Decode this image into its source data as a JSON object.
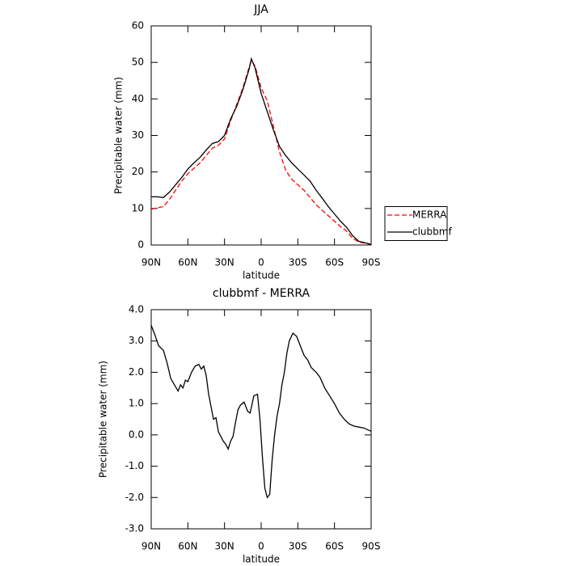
{
  "chart_data": [
    {
      "type": "line",
      "title": "JJA",
      "xlabel": "latitude",
      "ylabel": "Precipitable water (mm)",
      "x": [
        90,
        85,
        80,
        75,
        70,
        65,
        60,
        55,
        50,
        45,
        40,
        35,
        30,
        25,
        20,
        15,
        10,
        8,
        5,
        0,
        -5,
        -10,
        -15,
        -20,
        -25,
        -30,
        -35,
        -40,
        -45,
        -50,
        -55,
        -60,
        -65,
        -70,
        -75,
        -80,
        -85,
        -90
      ],
      "xlim": [
        90,
        -90
      ],
      "xticks": [
        {
          "value": 90,
          "label": "90N"
        },
        {
          "value": 60,
          "label": "60N"
        },
        {
          "value": 30,
          "label": "30N"
        },
        0,
        {
          "value": -30,
          "label": "30S"
        },
        {
          "value": -60,
          "label": "60S"
        },
        {
          "value": -90,
          "label": "90S"
        }
      ],
      "ylim": [
        0,
        60
      ],
      "yticks": [
        0,
        10,
        20,
        30,
        40,
        50,
        60
      ],
      "legend": "right",
      "series": [
        {
          "name": "MERRA",
          "color": "#ff0000",
          "line_style": "dashed",
          "values": [
            9.8,
            10.2,
            10.5,
            12.5,
            15,
            17.5,
            19.5,
            21,
            22.5,
            24.5,
            26.5,
            27.3,
            29,
            34,
            38.5,
            43,
            48.5,
            50.5,
            49,
            43,
            39.5,
            32.5,
            25.5,
            20.5,
            18,
            16.5,
            15,
            13,
            11,
            9.5,
            8,
            6.5,
            5,
            3.8,
            1.8,
            0.8,
            0.5,
            0.1
          ]
        },
        {
          "name": "clubbmf",
          "color": "#000000",
          "line_style": "solid",
          "values": [
            13.2,
            13.2,
            13,
            14.5,
            16.5,
            18.5,
            20.8,
            22.5,
            24,
            26,
            27.8,
            28.3,
            30,
            34.5,
            38,
            42.5,
            48,
            51,
            48.5,
            41.5,
            36.5,
            31.5,
            27,
            24.5,
            22.5,
            20.8,
            19.2,
            17.5,
            15,
            12.8,
            10.5,
            8.5,
            6.5,
            4.8,
            2.5,
            1,
            0.6,
            0.2
          ]
        }
      ]
    },
    {
      "type": "line",
      "title": "clubbmf - MERRA",
      "xlabel": "latitude",
      "ylabel": "Precipitable water (mm)",
      "x": [
        90,
        87,
        84,
        80,
        77,
        74,
        71,
        68,
        66,
        64,
        62,
        60,
        57,
        54,
        51,
        49,
        47,
        45,
        43,
        41,
        39,
        37,
        35,
        33,
        31,
        29,
        27,
        25,
        23,
        21,
        19,
        17,
        14,
        11,
        9,
        6,
        3,
        1,
        -1,
        -3,
        -5,
        -7,
        -9,
        -11,
        -13,
        -15,
        -17,
        -19,
        -21,
        -23,
        -26,
        -29,
        -32,
        -35,
        -38,
        -41,
        -45,
        -48,
        -52,
        -56,
        -60,
        -64,
        -68,
        -72,
        -76,
        -80,
        -84,
        -88,
        -90
      ],
      "xlim": [
        90,
        -90
      ],
      "xticks": [
        {
          "value": 90,
          "label": "90N"
        },
        {
          "value": 60,
          "label": "60N"
        },
        {
          "value": 30,
          "label": "30N"
        },
        0,
        {
          "value": -30,
          "label": "30S"
        },
        {
          "value": -60,
          "label": "60S"
        },
        {
          "value": -90,
          "label": "90S"
        }
      ],
      "ylim": [
        -3,
        4
      ],
      "yticks": [
        {
          "value": -3,
          "label": "-3.0"
        },
        {
          "value": -2,
          "label": "-2.0"
        },
        {
          "value": -1,
          "label": "-1.0"
        },
        {
          "value": 0,
          "label": "0.0"
        },
        {
          "value": 1,
          "label": "1.0"
        },
        {
          "value": 2,
          "label": "2.0"
        },
        {
          "value": 3,
          "label": "3.0"
        },
        {
          "value": 4,
          "label": "4.0"
        }
      ],
      "series": [
        {
          "color": "#000000",
          "line_style": "solid",
          "values": [
            3.5,
            3.2,
            2.85,
            2.7,
            2.3,
            1.8,
            1.6,
            1.4,
            1.6,
            1.5,
            1.75,
            1.7,
            2.0,
            2.2,
            2.25,
            2.1,
            2.2,
            1.9,
            1.3,
            0.9,
            0.5,
            0.55,
            0.1,
            -0.05,
            -0.2,
            -0.3,
            -0.45,
            -0.2,
            -0.05,
            0.4,
            0.8,
            0.95,
            1.05,
            0.75,
            0.7,
            1.25,
            1.3,
            0.5,
            -0.7,
            -1.7,
            -2.0,
            -1.9,
            -0.8,
            0.0,
            0.6,
            1.0,
            1.6,
            2.0,
            2.6,
            3.0,
            3.25,
            3.15,
            2.85,
            2.55,
            2.4,
            2.15,
            2.0,
            1.85,
            1.5,
            1.25,
            1.0,
            0.7,
            0.5,
            0.35,
            0.28,
            0.25,
            0.22,
            0.15,
            0.12
          ]
        }
      ]
    }
  ]
}
